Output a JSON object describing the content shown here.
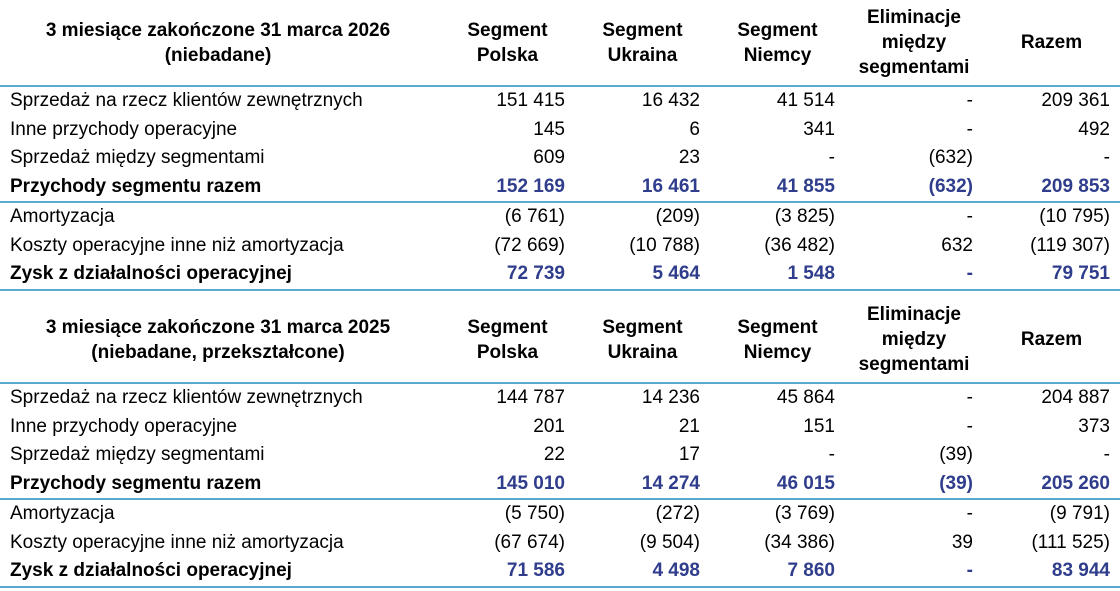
{
  "columns": [
    "Segment Polska",
    "Segment Ukraina",
    "Segment Niemcy",
    "Eliminacje między segmentami",
    "Razem"
  ],
  "col_lines": [
    [
      "Segment",
      "Polska"
    ],
    [
      "Segment",
      "Ukraina"
    ],
    [
      "Segment",
      "Niemcy"
    ],
    [
      "Eliminacje",
      "między",
      "segmentami"
    ],
    [
      "Razem"
    ]
  ],
  "tables": [
    {
      "title_line1": "3 miesiące zakończone 31 marca 2026",
      "title_line2": "(niebadane)",
      "rows": [
        {
          "label": "Sprzedaż na rzecz klientów zewnętrznych",
          "values": [
            "151 415",
            "16 432",
            "41 514",
            "-",
            "209 361"
          ]
        },
        {
          "label": "Inne przychody operacyjne",
          "values": [
            "145",
            "6",
            "341",
            "-",
            "492"
          ]
        },
        {
          "label": "Sprzedaż między segmentami",
          "values": [
            "609",
            "23",
            "-",
            "(632)",
            "-"
          ]
        },
        {
          "label": "Przychody segmentu razem",
          "values": [
            "152 169",
            "16 461",
            "41 855",
            "(632)",
            "209 853"
          ]
        },
        {
          "label": "Amortyzacja",
          "values": [
            "(6 761)",
            "(209)",
            "(3 825)",
            "-",
            "(10 795)"
          ]
        },
        {
          "label": "Koszty operacyjne inne niż amortyzacja",
          "values": [
            "(72 669)",
            "(10 788)",
            "(36 482)",
            "632",
            "(119 307)"
          ]
        },
        {
          "label": "Zysk z działalności operacyjnej",
          "values": [
            "72 739",
            "5 464",
            "1 548",
            "-",
            "79 751"
          ]
        }
      ]
    },
    {
      "title_line1": "3 miesiące zakończone 31 marca 2025",
      "title_line2": "(niebadane, przekształcone)",
      "rows": [
        {
          "label": "Sprzedaż na rzecz klientów zewnętrznych",
          "values": [
            "144 787",
            "14 236",
            "45 864",
            "-",
            "204 887"
          ]
        },
        {
          "label": "Inne przychody operacyjne",
          "values": [
            "201",
            "21",
            "151",
            "-",
            "373"
          ]
        },
        {
          "label": "Sprzedaż między segmentami",
          "values": [
            "22",
            "17",
            "-",
            "(39)",
            "-"
          ]
        },
        {
          "label": "Przychody segmentu razem",
          "values": [
            "145 010",
            "14 274",
            "46 015",
            "(39)",
            "205 260"
          ]
        },
        {
          "label": "Amortyzacja",
          "values": [
            "(5 750)",
            "(272)",
            "(3 769)",
            "-",
            "(9 791)"
          ]
        },
        {
          "label": "Koszty operacyjne inne niż amortyzacja",
          "values": [
            "(67 674)",
            "(9 504)",
            "(34 386)",
            "39",
            "(111 525)"
          ]
        },
        {
          "label": "Zysk z działalności operacyjnej",
          "values": [
            "71 586",
            "4 498",
            "7 860",
            "-",
            "83 944"
          ]
        }
      ]
    }
  ],
  "colors": {
    "accent_line": "#5aa9d0",
    "total_values": "#2f3d8c"
  }
}
